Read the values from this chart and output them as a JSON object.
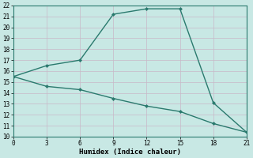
{
  "line1_x": [
    0,
    3,
    6,
    9,
    12,
    15,
    18,
    21
  ],
  "line1_y": [
    15.5,
    16.5,
    17.0,
    21.2,
    21.7,
    21.7,
    13.1,
    10.4
  ],
  "line2_x": [
    0,
    3,
    6,
    9,
    12,
    15,
    18,
    21
  ],
  "line2_y": [
    15.5,
    14.6,
    14.3,
    13.5,
    12.8,
    12.3,
    11.2,
    10.4
  ],
  "line_color": "#2a7a6e",
  "bg_color": "#c8e8e4",
  "grid_color": "#b0d8d4",
  "xlabel": "Humidex (Indice chaleur)",
  "xlim": [
    0,
    21
  ],
  "ylim": [
    10,
    22
  ],
  "xticks": [
    0,
    3,
    6,
    9,
    12,
    15,
    18,
    21
  ],
  "yticks": [
    10,
    11,
    12,
    13,
    14,
    15,
    16,
    17,
    18,
    19,
    20,
    21,
    22
  ]
}
